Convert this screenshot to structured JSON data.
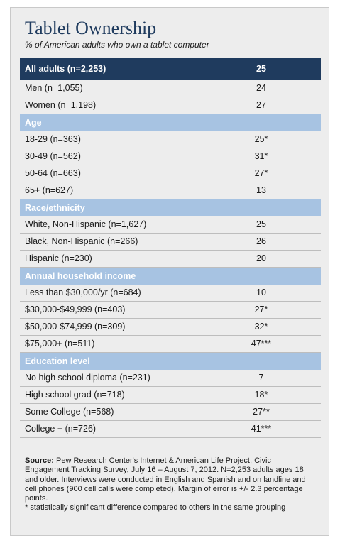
{
  "chart_data": {
    "type": "table",
    "title": "Tablet Ownership",
    "subtitle": "% of American adults who own a tablet computer",
    "rows": [
      {
        "kind": "top",
        "label": "All adults (n=2,253)",
        "value": "25"
      },
      {
        "kind": "data",
        "label": "Men (n=1,055)",
        "value": "24"
      },
      {
        "kind": "data",
        "label": "Women (n=1,198)",
        "value": "27"
      },
      {
        "kind": "header",
        "label": "Age"
      },
      {
        "kind": "data",
        "label": "18-29 (n=363)",
        "value": "25*"
      },
      {
        "kind": "data",
        "label": "30-49 (n=562)",
        "value": "31*"
      },
      {
        "kind": "data",
        "label": "50-64 (n=663)",
        "value": "27*"
      },
      {
        "kind": "data",
        "label": "65+ (n=627)",
        "value": "13"
      },
      {
        "kind": "header",
        "label": "Race/ethnicity"
      },
      {
        "kind": "data",
        "label": "White, Non-Hispanic (n=1,627)",
        "value": "25"
      },
      {
        "kind": "data",
        "label": "Black, Non-Hispanic (n=266)",
        "value": "26"
      },
      {
        "kind": "data",
        "label": "Hispanic (n=230)",
        "value": "20"
      },
      {
        "kind": "header",
        "label": "Annual household income"
      },
      {
        "kind": "data",
        "label": "Less than $30,000/yr (n=684)",
        "value": "10"
      },
      {
        "kind": "data",
        "label": "$30,000-$49,999 (n=403)",
        "value": "27*"
      },
      {
        "kind": "data",
        "label": "$50,000-$74,999 (n=309)",
        "value": "32*"
      },
      {
        "kind": "data",
        "label": "$75,000+ (n=511)",
        "value": "47***"
      },
      {
        "kind": "header",
        "label": "Education level"
      },
      {
        "kind": "data",
        "label": "No high school diploma (n=231)",
        "value": "7"
      },
      {
        "kind": "data",
        "label": "High school grad (n=718)",
        "value": "18*"
      },
      {
        "kind": "data",
        "label": "Some College (n=568)",
        "value": "27**"
      },
      {
        "kind": "data",
        "label": "College + (n=726)",
        "value": "41***"
      }
    ],
    "colors": {
      "top_row": "#1f3b5e",
      "section_header": "#a7c3e2",
      "title": "#1f3b5e",
      "card_background": "#ededed"
    }
  },
  "source": {
    "label": "Source:",
    "text": "Pew Research Center's Internet & American Life Project, Civic Engagement Tracking Survey, July 16 – August 7, 2012. N=2,253 adults ages 18 and older. Interviews were conducted in English and Spanish and on landline and cell phones (900 cell calls were completed). Margin of error is +/- 2.3 percentage points.",
    "footnote": "* statistically significant difference compared to others in the same grouping"
  }
}
